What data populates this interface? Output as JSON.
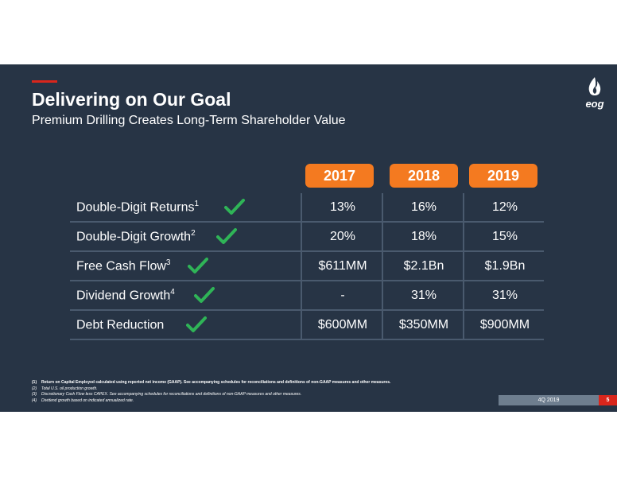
{
  "header": {
    "title": "Delivering on Our Goal",
    "subtitle": "Premium Drilling Creates Long-Term Shareholder Value",
    "logo_text": "eog"
  },
  "columns": [
    "2017",
    "2018",
    "2019"
  ],
  "rows": [
    {
      "label": "Double-Digit Returns",
      "sup": "1",
      "values": [
        "13%",
        "16%",
        "12%"
      ]
    },
    {
      "label": "Double-Digit Growth",
      "sup": "2",
      "values": [
        "20%",
        "18%",
        "15%"
      ]
    },
    {
      "label": "Free Cash Flow",
      "sup": "3",
      "values": [
        "$611MM",
        "$2.1Bn",
        "$1.9Bn"
      ]
    },
    {
      "label": "Dividend Growth",
      "sup": "4",
      "values": [
        "-",
        "31%",
        "31%"
      ]
    },
    {
      "label": "Debt Reduction",
      "sup": "",
      "values": [
        "$600MM",
        "$350MM",
        "$900MM"
      ]
    }
  ],
  "footnotes": [
    {
      "num": "(1)",
      "text": "Return on Capital Employed calculated using reported net income (GAAP). See accompanying schedules for reconciliations and definitions of non-GAAP measures and other measures."
    },
    {
      "num": "(2)",
      "text": "Total U.S. oil production growth."
    },
    {
      "num": "(3)",
      "text": "Discretionary Cash Flow less CAPEX. See accompanying schedules for reconciliations and definitions of non-GAAP measures and other measures."
    },
    {
      "num": "(4)",
      "text": "Dividend growth based on indicated annualized rate."
    }
  ],
  "footer": {
    "period": "4Q 2019",
    "page": "5"
  },
  "colors": {
    "background": "#273445",
    "accent": "#f47a20",
    "check": "#2fb457",
    "red": "#d9261c"
  },
  "icons": {
    "check": "check-icon",
    "logo": "eog-flame-logo-icon"
  }
}
